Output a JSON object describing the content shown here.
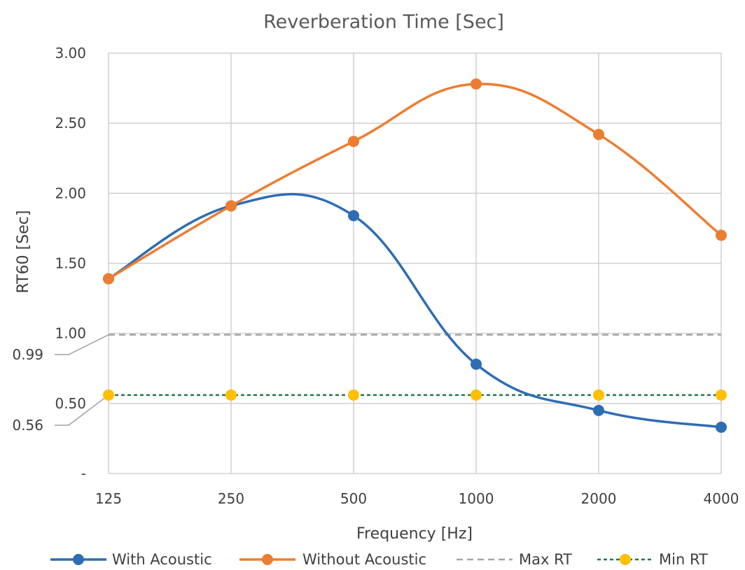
{
  "chart_data": {
    "type": "line",
    "title": "Reverberation Time [Sec]",
    "xlabel": "Frequency [Hz]",
    "ylabel": "RT60 [Sec]",
    "categories": [
      "125",
      "250",
      "500",
      "1000",
      "2000",
      "4000"
    ],
    "ylim": [
      0,
      3
    ],
    "yticks": [
      {
        "value": 0,
        "label": "-"
      },
      {
        "value": 0.5,
        "label": "0.50"
      },
      {
        "value": 1.0,
        "label": "1.00"
      },
      {
        "value": 1.5,
        "label": "1.50"
      },
      {
        "value": 2.0,
        "label": "2.00"
      },
      {
        "value": 2.5,
        "label": "2.50"
      },
      {
        "value": 3.0,
        "label": "3.00"
      }
    ],
    "grid": true,
    "legend_position": "bottom",
    "series": [
      {
        "name": "With Acoustic",
        "color": "#2E6DB4",
        "style": "smooth",
        "marker": true,
        "values": [
          1.39,
          1.91,
          1.84,
          0.78,
          0.45,
          0.33
        ]
      },
      {
        "name": "Without Acoustic",
        "color": "#ED7D31",
        "style": "smooth",
        "marker": true,
        "values": [
          1.39,
          1.91,
          2.37,
          2.78,
          2.42,
          1.7
        ]
      },
      {
        "name": "Max RT",
        "color": "#A6A6A6",
        "style": "dashed",
        "marker": false,
        "values": [
          0.99,
          0.99,
          0.99,
          0.99,
          0.99,
          0.99
        ]
      },
      {
        "name": "Min RT",
        "color": "#1E7A4E",
        "marker_color": "#FFC000",
        "style": "dotted",
        "marker": true,
        "values": [
          0.56,
          0.56,
          0.56,
          0.56,
          0.56,
          0.56
        ]
      }
    ],
    "annotations": [
      {
        "label": "0.99",
        "value": 0.99
      },
      {
        "label": "0.56",
        "value": 0.56
      }
    ]
  }
}
